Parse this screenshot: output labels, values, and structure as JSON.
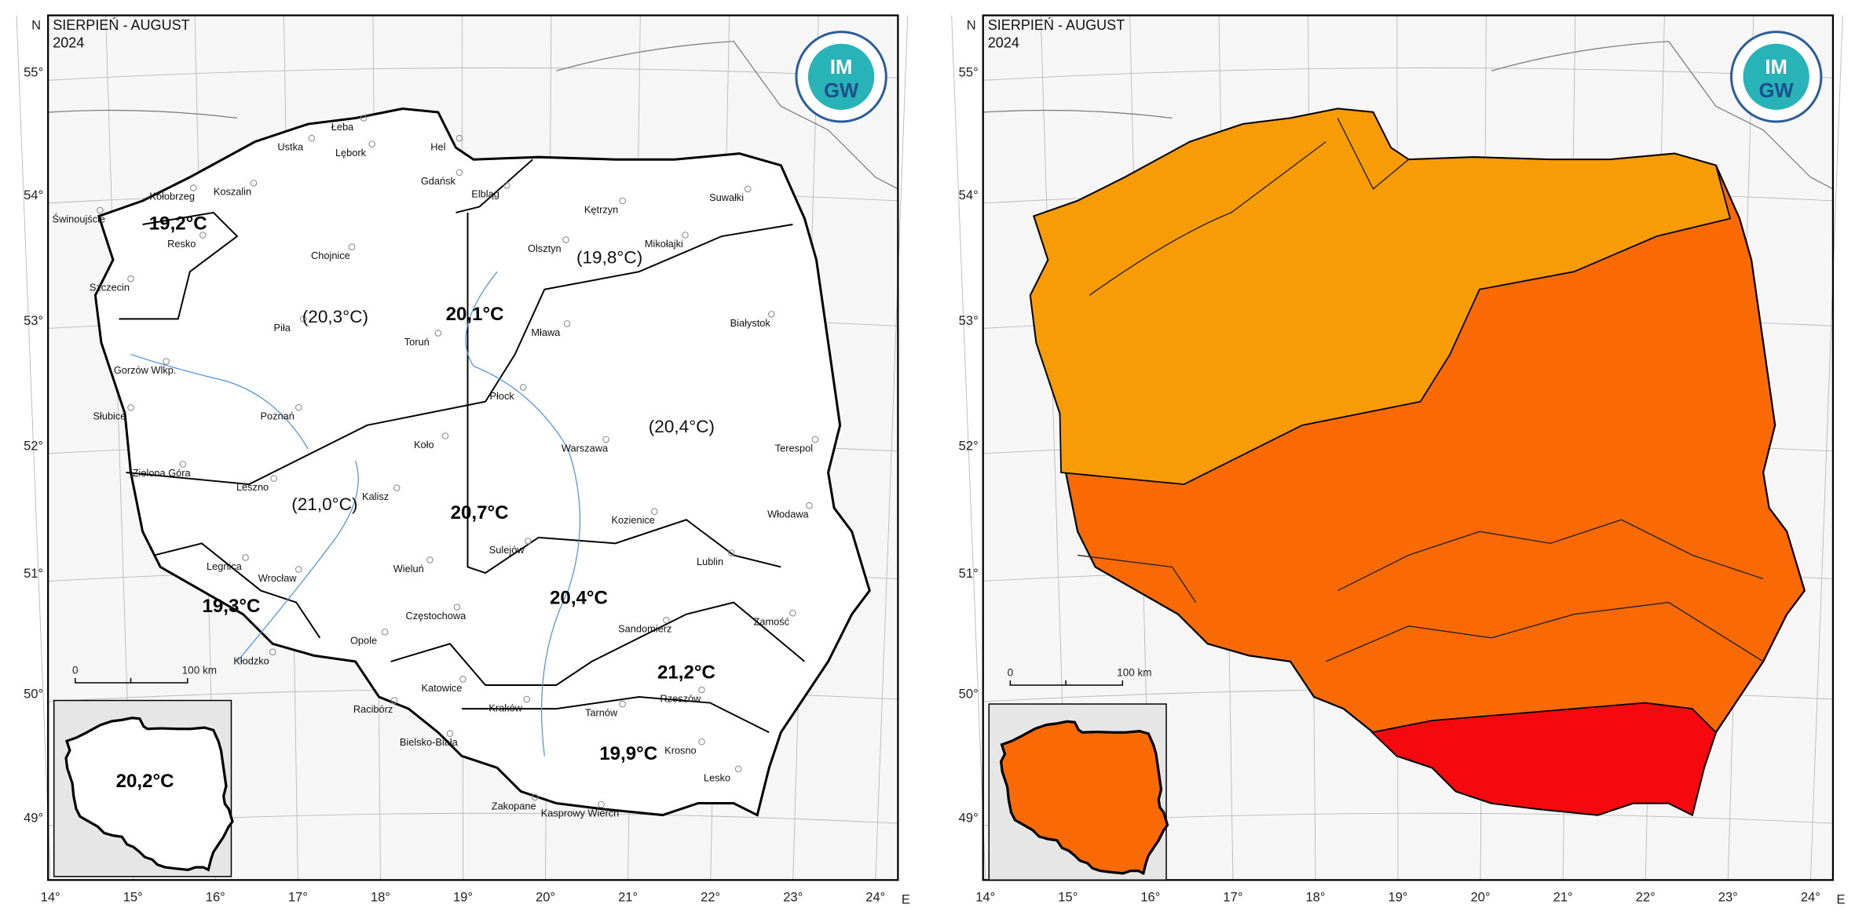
{
  "panels": [
    {
      "title": "SIERPIEŃ - AUGUST",
      "year": "2024",
      "north": "N",
      "east": "E",
      "lat_labels": [
        "55°",
        "54°",
        "53°",
        "52°",
        "51°",
        "50°",
        "49°"
      ],
      "lon_labels": [
        "14°",
        "15°",
        "16°",
        "17°",
        "18°",
        "19°",
        "20°",
        "21°",
        "22°",
        "23°",
        "24°"
      ],
      "scale_start": "0",
      "scale_end": "100 km",
      "logo_top": "IM",
      "logo_bottom": "GW",
      "cities": [
        "Łeba",
        "Ustka",
        "Lębork",
        "Hel",
        "Kołobrzeg",
        "Koszalin",
        "Gdańsk",
        "Elbląg",
        "Suwałki",
        "Świnoujście",
        "Kętrzyn",
        "Resko",
        "Chojnice",
        "Olsztyn",
        "Mikołajki",
        "Szczecin",
        "Piła",
        "Białystok",
        "Toruń",
        "Mława",
        "Gorzów Wlkp.",
        "Płock",
        "Poznań",
        "Słubice",
        "Koło",
        "Warszawa",
        "Terespol",
        "Zielona Góra",
        "Leszno",
        "Kalisz",
        "Włodawa",
        "Kozienice",
        "Sulejów",
        "Lublin",
        "Legnica",
        "Wieluń",
        "Wrocław",
        "Częstochowa",
        "Zamość",
        "Sandomierz",
        "Opole",
        "Kłodzko",
        "Katowice",
        "Rzeszów",
        "Racibórz",
        "Kraków",
        "Tarnów",
        "Bielsko-Biała",
        "Krosno",
        "Lesko",
        "Zakopane",
        "Kasprowy Wierch"
      ],
      "temperatures": [
        "19,2°C",
        "(20,3°C)",
        "20,1°C",
        "(19,8°C)",
        "(20,4°C)",
        "(21,0°C)",
        "20,7°C",
        "19,3°C",
        "20,4°C",
        "21,2°C",
        "19,9°C"
      ],
      "inset_value": "20,2°C"
    },
    {
      "title": "SIERPIEŃ - AUGUST",
      "year": "2024",
      "north": "N",
      "east": "E",
      "lat_labels": [
        "55°",
        "54°",
        "53°",
        "52°",
        "51°",
        "50°",
        "49°"
      ],
      "lon_labels": [
        "14°",
        "15°",
        "16°",
        "17°",
        "18°",
        "19°",
        "20°",
        "21°",
        "22°",
        "23°",
        "24°"
      ],
      "scale_start": "0",
      "scale_end": "100 km",
      "logo_top": "IM",
      "logo_bottom": "GW"
    }
  ]
}
